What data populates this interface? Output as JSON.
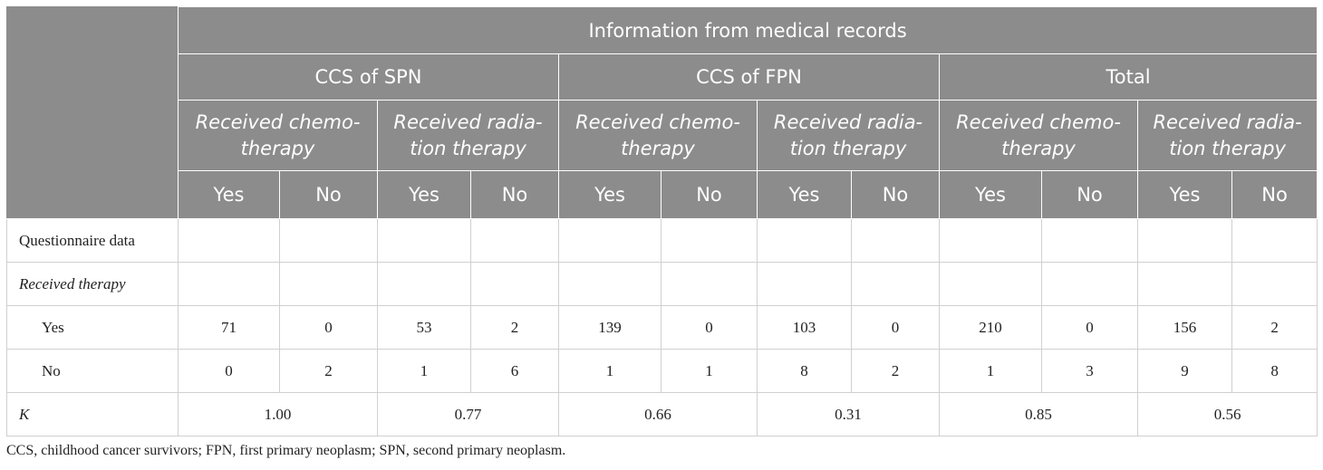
{
  "header": {
    "top": "Information from medical records",
    "groups": [
      "CCS of SPN",
      "CCS of FPN",
      "Total"
    ],
    "subgroups": [
      "Received chemo-therapy",
      "Received radia-tion therapy"
    ],
    "yes": "Yes",
    "no": "No"
  },
  "rows": {
    "questionnaire": "Questionnaire data",
    "received": "Received therapy",
    "yes": {
      "label": "Yes",
      "values": [
        "71",
        "0",
        "53",
        "2",
        "139",
        "0",
        "103",
        "0",
        "210",
        "0",
        "156",
        "2"
      ]
    },
    "no": {
      "label": "No",
      "values": [
        "0",
        "2",
        "1",
        "6",
        "1",
        "1",
        "8",
        "2",
        "1",
        "3",
        "9",
        "8"
      ]
    },
    "k": {
      "label": "K",
      "values": [
        "1.00",
        "0.77",
        "0.66",
        "0.31",
        "0.85",
        "0.56"
      ]
    }
  },
  "footnote": "CCS, childhood cancer survivors; FPN, first primary neoplasm; SPN, second primary neoplasm."
}
